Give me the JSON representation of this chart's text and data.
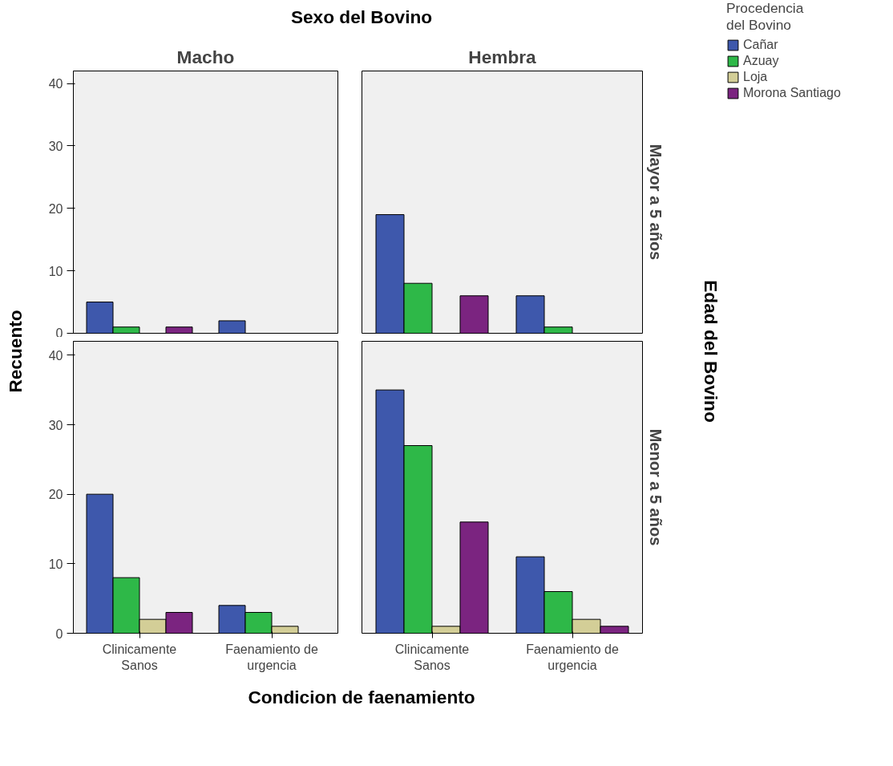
{
  "chart_data": [
    {
      "type": "bar",
      "title": "Macho",
      "ylabel": "Recuento",
      "legend_title": "Procedencia del Bovino",
      "legend": "right",
      "annotations": [
        "Sexo del Bovino"
      ],
      "categories": [
        "Clinicamente Sanos",
        "Faenamiento de urgencia"
      ],
      "ylim": [
        0,
        42
      ],
      "yticks": [
        0,
        10,
        20,
        30,
        40
      ],
      "tick_labels": "y",
      "series": [
        {
          "name": "Cañar",
          "color": "#3e58ac",
          "values": [
            5,
            2
          ]
        },
        {
          "name": "Azuay",
          "color": "#2eb848",
          "values": [
            1,
            null
          ]
        },
        {
          "name": "Loja",
          "color": "#d3ce97",
          "values": [
            null,
            null
          ]
        },
        {
          "name": "Morona Santiago",
          "color": "#7b2480",
          "values": [
            1,
            null
          ]
        }
      ]
    },
    {
      "type": "bar",
      "title": "Hembra",
      "y2label": "Mayor a 5 años",
      "annotations": [
        "Edad del Bovino"
      ],
      "categories": [
        "Clinicamente Sanos",
        "Faenamiento de urgencia"
      ],
      "ylim": [
        0,
        42
      ],
      "tick_labels": false,
      "series": [
        {
          "color": "#3e58ac",
          "values": [
            19,
            6
          ]
        },
        {
          "color": "#2eb848",
          "values": [
            8,
            1
          ]
        },
        {
          "color": "#d3ce97",
          "values": [
            null,
            null
          ]
        },
        {
          "color": "#7b2480",
          "values": [
            6,
            null
          ]
        }
      ]
    },
    {
      "type": "bar",
      "xlabel": "Condicion de faenamiento",
      "categories": [
        "Clinicamente Sanos",
        "Faenamiento de urgencia"
      ],
      "ylim": [
        0,
        42
      ],
      "yticks": [
        0,
        10,
        20,
        30,
        40
      ],
      "series": [
        {
          "color": "#3e58ac",
          "values": [
            20,
            4
          ]
        },
        {
          "color": "#2eb848",
          "values": [
            8,
            3
          ]
        },
        {
          "color": "#d3ce97",
          "values": [
            2,
            1
          ]
        },
        {
          "color": "#7b2480",
          "values": [
            3,
            null
          ]
        }
      ]
    },
    {
      "type": "bar",
      "y2label": "Menor a 5 años",
      "categories": [
        "Clinicamente Sanos",
        "Faenamiento de urgencia"
      ],
      "ylim": [
        0,
        42
      ],
      "tick_labels": "x",
      "series": [
        {
          "color": "#3e58ac",
          "values": [
            35,
            11
          ]
        },
        {
          "color": "#2eb848",
          "values": [
            27,
            6
          ]
        },
        {
          "color": "#d3ce97",
          "values": [
            1,
            2
          ]
        },
        {
          "color": "#7b2480",
          "values": [
            16,
            1
          ]
        }
      ]
    }
  ]
}
